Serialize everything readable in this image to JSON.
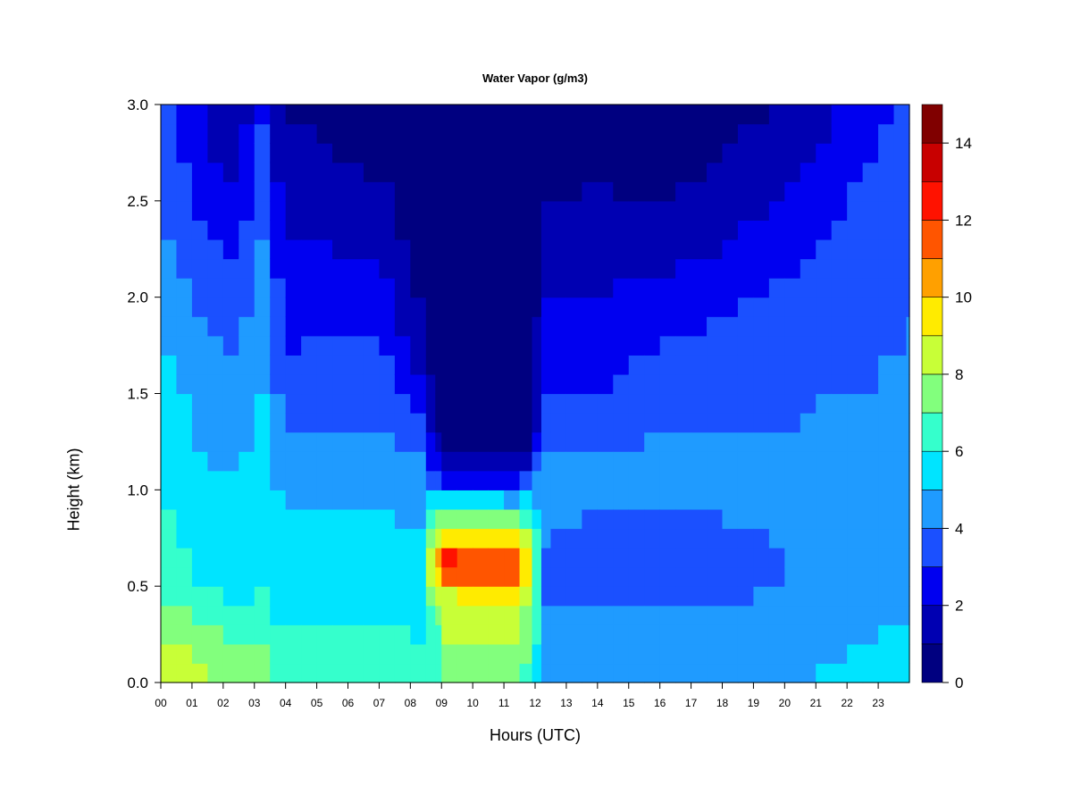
{
  "chart_data": {
    "type": "heatmap",
    "title": "Water Vapor (g/m3)",
    "xlabel": "Hours (UTC)",
    "ylabel": "Height (km)",
    "x_ticks": [
      "00",
      "01",
      "02",
      "03",
      "04",
      "05",
      "06",
      "07",
      "08",
      "09",
      "10",
      "11",
      "12",
      "13",
      "14",
      "15",
      "16",
      "17",
      "18",
      "19",
      "20",
      "21",
      "22",
      "23"
    ],
    "y_ticks": [
      "0.0",
      "0.5",
      "1.0",
      "1.5",
      "2.0",
      "2.5",
      "3.0"
    ],
    "xlim": [
      0,
      24
    ],
    "ylim": [
      0,
      3.0
    ],
    "colorbar": {
      "min": 0,
      "max": 15,
      "step": 1,
      "ticks": [
        "0",
        "2",
        "4",
        "6",
        "8",
        "10",
        "12",
        "14"
      ],
      "colors": [
        "#000080",
        "#0000b2",
        "#0000f0",
        "#1b50ff",
        "#1f9bff",
        "#00e4ff",
        "#35ffcc",
        "#82ff7d",
        "#c8ff37",
        "#ffeb00",
        "#ffa000",
        "#ff5500",
        "#ff1200",
        "#c80000",
        "#800000"
      ]
    },
    "grid_hours": [
      0,
      0.5,
      1,
      1.5,
      2,
      2.5,
      3,
      3.5,
      4,
      4.5,
      5,
      5.5,
      6,
      6.5,
      7,
      7.5,
      8,
      8.5,
      8.8,
      9,
      9.5,
      10,
      10.5,
      11,
      11.5,
      11.9,
      12.2,
      12.5,
      13,
      13.5,
      14,
      14.5,
      15,
      15.5,
      16,
      16.5,
      17,
      17.5,
      18,
      18.5,
      19,
      19.5,
      20,
      20.5,
      21,
      21.5,
      22,
      22.5,
      23,
      23.5,
      23.9
    ],
    "grid_heights_km": [
      0,
      0.1,
      0.2,
      0.3,
      0.4,
      0.5,
      0.6,
      0.7,
      0.8,
      0.9,
      1.0,
      1.1,
      1.2,
      1.3,
      1.4,
      1.5,
      1.6,
      1.7,
      1.8,
      1.9,
      2.0,
      2.1,
      2.2,
      2.3,
      2.4,
      2.5,
      2.6,
      2.7,
      2.8,
      2.9,
      3.0
    ],
    "profile_heights_km": [
      0,
      0.1,
      0.2,
      0.3,
      0.4,
      0.5,
      0.6,
      0.7,
      0.8,
      0.9,
      1.0,
      1.1,
      1.2,
      1.3,
      1.5,
      1.7,
      1.9,
      2.1,
      2.3,
      2.5,
      2.7,
      3.0
    ],
    "key_profiles": [
      {
        "hour": 0.0,
        "values": [
          8.5,
          8.3,
          8,
          7.5,
          7,
          6.6,
          6.3,
          6.2,
          6.1,
          6,
          6,
          6,
          5.8,
          5.8,
          5.7,
          5.3,
          5,
          4.6,
          4.2,
          3.9,
          3.6,
          3.3
        ]
      },
      {
        "hour": 0.5,
        "values": [
          8.6,
          8.4,
          8,
          7.5,
          7,
          6.5,
          6.2,
          6.1,
          6,
          5.9,
          5.8,
          5.6,
          5.5,
          5.3,
          5.1,
          4.8,
          4.5,
          4.2,
          3.9,
          3.6,
          3.3,
          3
        ]
      },
      {
        "hour": 1.5,
        "values": [
          8.3,
          8,
          7.5,
          7,
          6.5,
          6,
          5.7,
          5.5,
          5.4,
          5.3,
          5.2,
          5,
          4.9,
          4.7,
          4.5,
          4.3,
          3.9,
          3.5,
          3,
          2.6,
          2.2,
          1.8
        ]
      },
      {
        "hour": 2.5,
        "values": [
          7.5,
          7.2,
          6.8,
          6.5,
          6,
          5.7,
          5.5,
          5.4,
          5.3,
          5.2,
          5.1,
          5,
          4.8,
          4.6,
          4.3,
          4,
          3.6,
          3.1,
          2.6,
          2.1,
          1.6,
          1.2
        ]
      },
      {
        "hour": 3.2,
        "values": [
          7.3,
          7.2,
          7,
          6.6,
          6.2,
          5.9,
          5.8,
          5.7,
          5.6,
          5.5,
          5.5,
          5.4,
          5.3,
          5.2,
          5.1,
          5,
          4.8,
          4.5,
          4.2,
          3.8,
          3.4,
          3
        ]
      },
      {
        "hour": 4.0,
        "values": [
          6.6,
          6.6,
          6.4,
          6,
          5.6,
          5.4,
          5.3,
          5.2,
          5.1,
          5,
          4.9,
          4.6,
          4.3,
          4,
          3.6,
          3,
          2.6,
          2.4,
          1.9,
          1.5,
          1.2,
          1
        ]
      },
      {
        "hour": 5.5,
        "values": [
          6.7,
          6.6,
          6.3,
          6,
          5.6,
          5.4,
          5.3,
          5.2,
          5.1,
          5,
          4.9,
          4.5,
          4.3,
          4.1,
          3.6,
          3.2,
          2.8,
          2.4,
          1.9,
          1.4,
          1,
          0.8
        ]
      },
      {
        "hour": 7.0,
        "values": [
          6.9,
          6.7,
          6.5,
          6,
          5.7,
          5.4,
          5.3,
          5.2,
          5.1,
          5,
          4.9,
          4.6,
          4.3,
          4,
          3.7,
          3.2,
          2.7,
          2.2,
          1.6,
          1.2,
          0.9,
          0.7
        ]
      },
      {
        "hour": 8.3,
        "values": [
          6.5,
          6.3,
          6,
          5.8,
          5.6,
          5.4,
          5.2,
          5.1,
          5,
          4.8,
          4.5,
          4.2,
          4,
          3.5,
          2.6,
          1.6,
          1.1,
          0.8,
          0.6,
          0.5,
          0.4,
          0.3
        ]
      },
      {
        "hour": 8.8,
        "values": [
          6,
          6.2,
          6.5,
          6.8,
          7.5,
          8.5,
          10,
          9,
          7.8,
          6.5,
          4.5,
          3,
          2,
          1.2,
          0.6,
          0.4,
          0.3,
          0.3,
          0.3,
          0.2,
          0.2,
          0.2
        ]
      },
      {
        "hour": 9.3,
        "values": [
          6.9,
          7.4,
          8.2,
          8.6,
          8.4,
          9.8,
          13.4,
          11.2,
          8.6,
          6.2,
          3.8,
          1.9,
          1,
          0.6,
          0.4,
          0.3,
          0.3,
          0.3,
          0.2,
          0.2,
          0.2,
          0.2
        ]
      },
      {
        "hour": 10.0,
        "values": [
          6.7,
          7.3,
          8,
          8.6,
          8.6,
          9.6,
          12.8,
          10.8,
          8.6,
          6.4,
          3.8,
          1.6,
          0.8,
          0.5,
          0.4,
          0.3,
          0.3,
          0.3,
          0.2,
          0.2,
          0.2,
          0.2
        ]
      },
      {
        "hour": 11.5,
        "values": [
          6.8,
          7.3,
          8.2,
          8.5,
          8.5,
          9.8,
          13.1,
          10.6,
          8.5,
          6.3,
          3.6,
          1.5,
          0.8,
          0.5,
          0.4,
          0.3,
          0.3,
          0.3,
          0.2,
          0.2,
          0.2,
          0.2
        ]
      },
      {
        "hour": 11.9,
        "values": [
          6.3,
          6.6,
          7,
          7.1,
          7.2,
          7.6,
          8,
          7.8,
          6.8,
          5.8,
          4.8,
          3,
          1.7,
          1,
          0.6,
          0.4,
          0.3,
          0.3,
          0.2,
          0.2,
          0.2,
          0.2
        ]
      },
      {
        "hour": 12.3,
        "values": [
          4.3,
          4.5,
          4.6,
          4.5,
          4.2,
          3.5,
          3.6,
          4,
          4.1,
          4.2,
          4.3,
          4.2,
          4,
          3.5,
          3,
          2.6,
          2.2,
          1.8,
          1.4,
          1,
          0.8,
          0.6
        ]
      },
      {
        "hour": 14.0,
        "values": [
          4.8,
          4.6,
          4.5,
          4.4,
          4.2,
          3.5,
          3.5,
          3.7,
          3.8,
          4,
          4.1,
          4.1,
          4,
          3.8,
          2.9,
          2.5,
          2.2,
          1.9,
          1.5,
          1.1,
          0.8,
          0.5
        ]
      },
      {
        "hour": 16.0,
        "values": [
          4.8,
          4.6,
          4.5,
          4.3,
          4.1,
          3.5,
          3.4,
          3.6,
          3.8,
          4,
          4.2,
          4.2,
          4.1,
          4,
          3.8,
          3.2,
          2.5,
          2,
          1.3,
          1,
          0.7,
          0.5
        ]
      },
      {
        "hour": 18.0,
        "values": [
          4.5,
          4.4,
          4.3,
          4.2,
          4.1,
          3.6,
          3.5,
          3.7,
          3.9,
          4.1,
          4.2,
          4.2,
          4.1,
          4,
          3.9,
          3.5,
          3,
          2.5,
          1.8,
          1.4,
          1,
          0.6
        ]
      },
      {
        "hour": 20.0,
        "values": [
          4.7,
          4.6,
          4.5,
          4.4,
          4.3,
          4.1,
          4,
          4,
          4.1,
          4.1,
          4.2,
          4.1,
          4,
          4,
          3.9,
          3.7,
          3.3,
          3,
          2.6,
          2.2,
          1.7,
          1
        ]
      },
      {
        "hour": 21.5,
        "values": [
          5.4,
          5.1,
          4.8,
          4.6,
          4.5,
          4.4,
          4.3,
          4.3,
          4.2,
          4.2,
          4.2,
          4.1,
          4.1,
          4.1,
          4,
          3.8,
          3.5,
          3.3,
          3,
          2.7,
          2.3,
          1.8
        ]
      },
      {
        "hour": 23.0,
        "values": [
          5.6,
          5.4,
          5.1,
          4.9,
          4.8,
          4.6,
          4.5,
          4.4,
          4.3,
          4.2,
          4.2,
          4.1,
          4.1,
          4.1,
          4,
          4,
          3.9,
          3.8,
          3.7,
          3.5,
          3.2,
          2.8
        ]
      },
      {
        "hour": 23.9,
        "values": [
          5.7,
          5.6,
          5.3,
          5,
          4.8,
          4.6,
          4.5,
          4.4,
          4.3,
          4.2,
          4.2,
          4.2,
          4.2,
          4.1,
          4.1,
          4,
          4,
          3.9,
          3.8,
          3.6,
          3.4,
          3
        ]
      }
    ]
  }
}
